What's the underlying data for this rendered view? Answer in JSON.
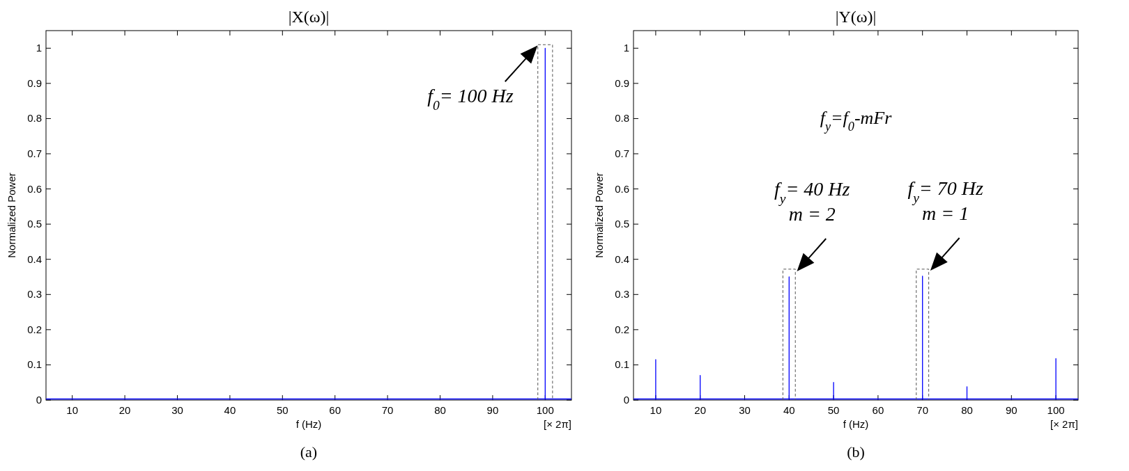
{
  "chart_data": [
    {
      "type": "line",
      "title": "|X(ω)|",
      "xlabel": "f (Hz)",
      "ylabel": "Normalized Power",
      "xlim": [
        5,
        105
      ],
      "ylim": [
        0,
        1.05
      ],
      "xticks": [
        10,
        20,
        30,
        40,
        50,
        60,
        70,
        80,
        90,
        100
      ],
      "yticks": [
        0,
        0.1,
        0.2,
        0.3,
        0.4,
        0.5,
        0.6,
        0.7,
        0.8,
        0.9,
        1
      ],
      "series": [
        {
          "color": "#0000ff",
          "x": [
            5,
            100,
            100,
            100,
            105
          ],
          "values": [
            0.003,
            0.003,
            1,
            0.003,
            0.003
          ]
        },
        {
          "color": "#555555",
          "line_style": "dashed",
          "x": [
            98.6,
            98.6,
            101.4,
            101.4
          ],
          "values": [
            0,
            1.01,
            1.01,
            0
          ]
        }
      ],
      "annotations": [
        {
          "text": "f$_{0}$=  100 Hz",
          "x": 100,
          "y": 1
        },
        "[× 2π]",
        "(a)"
      ]
    },
    {
      "type": "line",
      "title": "|Y(ω)|",
      "xlabel": "f (Hz)",
      "ylabel": "Normalized Power",
      "xlim": [
        5,
        105
      ],
      "ylim": [
        0,
        1.05
      ],
      "xticks": [
        10,
        20,
        30,
        40,
        50,
        60,
        70,
        80,
        90,
        100
      ],
      "yticks": [
        0,
        0.1,
        0.2,
        0.3,
        0.4,
        0.5,
        0.6,
        0.7,
        0.8,
        0.9,
        1
      ],
      "series": [
        {
          "color": "#0000ff",
          "x": [
            5,
            10,
            10,
            10,
            20,
            20,
            20,
            40,
            40,
            40,
            50,
            50,
            50,
            70,
            70,
            70,
            80,
            80,
            80,
            100,
            100,
            100,
            105
          ],
          "values": [
            0.003,
            0.003,
            0.115,
            0.003,
            0.003,
            0.07,
            0.003,
            0.003,
            0.35,
            0.003,
            0.003,
            0.05,
            0.003,
            0.003,
            0.352,
            0.003,
            0.003,
            0.038,
            0.003,
            0.003,
            0.118,
            0.003,
            0.003
          ]
        },
        {
          "color": "#555555",
          "line_style": "dashed",
          "x": [
            38.6,
            38.6,
            41.4,
            41.4
          ],
          "values": [
            0,
            0.372,
            0.372,
            0
          ]
        },
        {
          "color": "#555555",
          "line_style": "dashed",
          "x": [
            68.6,
            68.6,
            71.4,
            71.4
          ],
          "values": [
            0,
            0.372,
            0.372,
            0
          ]
        }
      ],
      "annotations": [
        {
          "text": "f$_{y}$= 40 Hz\nm = 2",
          "x": 40,
          "y": 0.35
        },
        {
          "text": "f$_{y}$=  70 Hz\nm = 1",
          "x": 70,
          "y": 0.352
        },
        "f$_{y}$=f$_{0}$-mFr",
        "[× 2π]",
        "(b)"
      ]
    }
  ]
}
